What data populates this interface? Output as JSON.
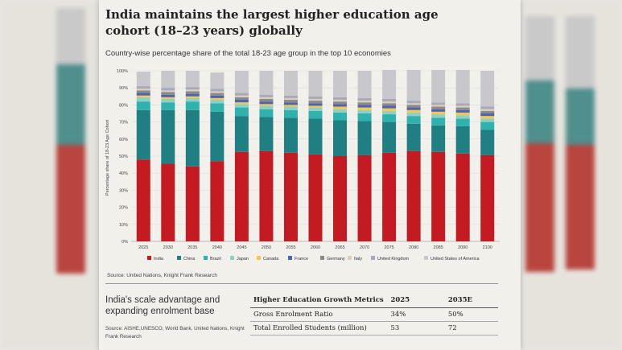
{
  "headline": "India maintains the largest higher education age cohort (18–23 years) globally",
  "subtitle": "Country-wise percentage share of the total 18-23 age group in the top 10 economies",
  "source_chart": "Source: United Nations, Knight Frank Research",
  "scale_title": "India's scale advantage and expanding enrolment base",
  "scale_source": "Source: AISHE,UNESCO, World Bank, United Nations, Knight Frank Research",
  "table": {
    "headers": [
      "Higher Education Growth Metrics",
      "2025",
      "2035E"
    ],
    "rows": [
      [
        "Gross Enrolment Ratio",
        "34%",
        "50%"
      ],
      [
        "Total Enrolled Students (million)",
        "53",
        "72"
      ]
    ]
  },
  "colors": {
    "India": "#c41a21",
    "China": "#1f7f83",
    "Brazil": "#2fb2ad",
    "Japan": "#8fcfc4",
    "Canada": "#f2c94a",
    "France": "#4f63b0",
    "Germany": "#8a8a8a",
    "Italy": "#d9cfbf",
    "United Kingdom": "#a9a9b9",
    "United States of America": "#c8c8cc"
  },
  "chart_data": {
    "type": "bar",
    "stacked": true,
    "title": "Country-wise percentage share of the total 18-23 age group in the top 10 economies",
    "xlabel": "",
    "ylabel": "Percentage share of 18-23 Age Cohort",
    "ylim": [
      0,
      100
    ],
    "yticks": [
      "0%",
      "10%",
      "20%",
      "30%",
      "40%",
      "50%",
      "60%",
      "70%",
      "80%",
      "90%",
      "100%"
    ],
    "categories": [
      "2025",
      "2030",
      "2035",
      "2040",
      "2045",
      "2050",
      "2055",
      "2060",
      "2065",
      "2070",
      "2075",
      "2080",
      "2085",
      "2090",
      "2100"
    ],
    "legend_position": "bottom",
    "series": [
      {
        "name": "India",
        "values": [
          48,
          45.5,
          44,
          47,
          52.5,
          53,
          52,
          51,
          50,
          50.5,
          52,
          53,
          52.5,
          51.5,
          50.5
        ]
      },
      {
        "name": "China",
        "values": [
          29,
          31.5,
          33,
          29,
          21,
          20,
          20.5,
          21,
          21,
          20,
          18,
          16,
          15.5,
          16,
          15
        ]
      },
      {
        "name": "Brazil",
        "values": [
          5,
          4.5,
          5,
          5,
          5,
          4.5,
          4.5,
          4.5,
          4.5,
          4.5,
          4.5,
          4.5,
          4.5,
          4.5,
          4.5
        ]
      },
      {
        "name": "Japan",
        "values": [
          2.5,
          2,
          2,
          2,
          2,
          2,
          2,
          2,
          2,
          2,
          2,
          2,
          2,
          2,
          2
        ]
      },
      {
        "name": "Canada",
        "values": [
          1,
          1,
          1,
          1,
          1,
          1,
          1,
          1,
          1.5,
          1.5,
          1.5,
          1.5,
          1.5,
          1.5,
          1.5
        ]
      },
      {
        "name": "France",
        "values": [
          1.5,
          1.5,
          1.5,
          1.5,
          1.5,
          1.5,
          1.5,
          1.5,
          1.5,
          1.5,
          1.5,
          1.5,
          1.5,
          1.5,
          1.5
        ]
      },
      {
        "name": "Germany",
        "values": [
          1.5,
          1.5,
          1.5,
          1.5,
          1.5,
          1.5,
          1.5,
          1.5,
          1.5,
          1.5,
          1.5,
          1.5,
          1.5,
          1.5,
          1.5
        ]
      },
      {
        "name": "Italy",
        "values": [
          1,
          1,
          1,
          1,
          1,
          1,
          1,
          1,
          1,
          1,
          1,
          1,
          1,
          1,
          1
        ]
      },
      {
        "name": "United Kingdom",
        "values": [
          1.5,
          1.5,
          1.5,
          1.5,
          1.5,
          1.5,
          1.5,
          1.5,
          1.5,
          1.5,
          1.5,
          1.5,
          1.5,
          1.5,
          1.5
        ]
      },
      {
        "name": "United States of America",
        "values": [
          8.5,
          10,
          9.5,
          9.5,
          13,
          14,
          14.5,
          15,
          15.5,
          16,
          17,
          18,
          19,
          19.5,
          21
        ]
      }
    ]
  }
}
